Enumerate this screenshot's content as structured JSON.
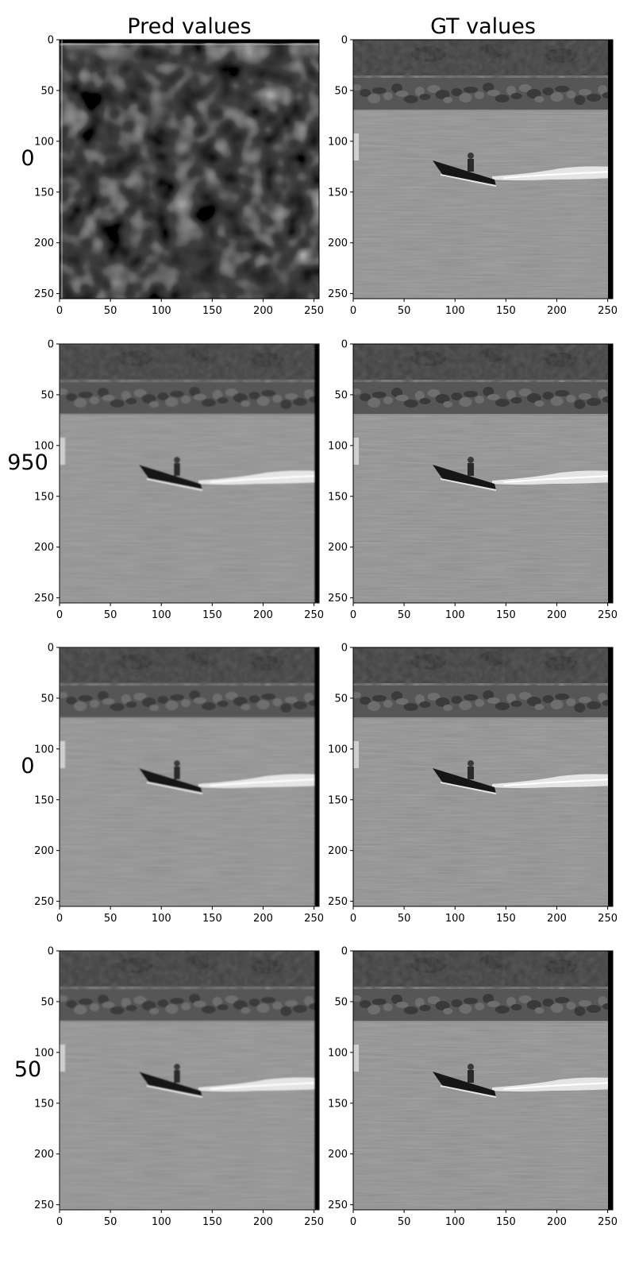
{
  "figure": {
    "col_titles": [
      "Pred values",
      "GT values"
    ]
  },
  "colors": {
    "background": "#ffffff",
    "axis": "#000000",
    "water": "#8f8f8f",
    "shore": "#3e3e3e",
    "rocks": "#565656",
    "boat": "#161616",
    "wake": "#f2f2f2"
  },
  "chart_data": {
    "type": "image-grid",
    "rows": 4,
    "cols": 2,
    "row_labels": [
      "0",
      "950",
      "0",
      "50"
    ],
    "col_titles": [
      "Pred values",
      "GT values"
    ],
    "xlim": [
      0,
      255
    ],
    "ylim": [
      255,
      0
    ],
    "xticks": [
      0,
      50,
      100,
      150,
      200,
      250
    ],
    "yticks": [
      0,
      50,
      100,
      150,
      200,
      250
    ],
    "panels": [
      {
        "row": 0,
        "col": 0,
        "content": "noise"
      },
      {
        "row": 0,
        "col": 1,
        "content": "boat-scene"
      },
      {
        "row": 1,
        "col": 0,
        "content": "boat-scene-blurred"
      },
      {
        "row": 1,
        "col": 1,
        "content": "boat-scene"
      },
      {
        "row": 2,
        "col": 0,
        "content": "boat-scene-blurred"
      },
      {
        "row": 2,
        "col": 1,
        "content": "boat-scene"
      },
      {
        "row": 3,
        "col": 0,
        "content": "boat-scene-blurred"
      },
      {
        "row": 3,
        "col": 1,
        "content": "boat-scene"
      }
    ]
  }
}
